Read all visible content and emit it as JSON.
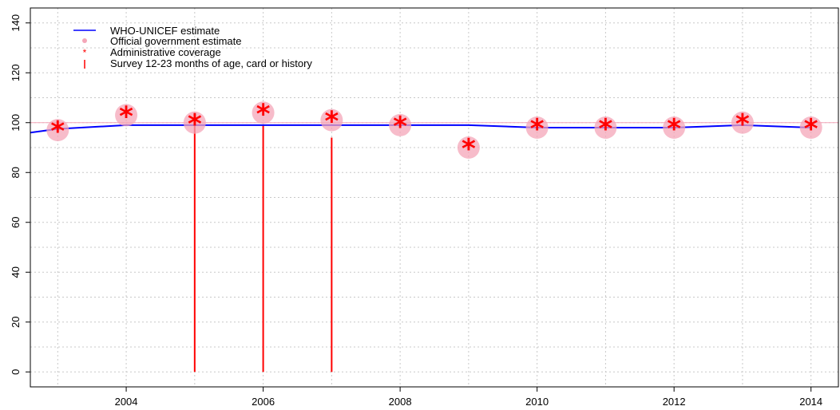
{
  "chart_data": {
    "type": "line",
    "title": "",
    "xlabel": "",
    "ylabel": "",
    "xlim": [
      2002.6,
      2014.4
    ],
    "ylim": [
      -6,
      146
    ],
    "x_ticks": [
      2004,
      2006,
      2008,
      2010,
      2012,
      2014
    ],
    "y_ticks": [
      0,
      20,
      40,
      60,
      80,
      100,
      120,
      140
    ],
    "grid": true,
    "legend_position": "top-left",
    "legend": [
      "WHO-UNICEF estimate",
      "Official government estimate",
      "Administrative coverage",
      "Survey 12-23 months of age, card or history"
    ],
    "colors": {
      "who_unicef": "#0000ff",
      "official": "#f4a6b8",
      "administrative": "#ff0000",
      "survey": "#ff0000",
      "grid": "#c8c8c8",
      "ref_line": "#f4a6b8"
    },
    "reference_line": 100,
    "series": [
      {
        "name": "WHO-UNICEF estimate",
        "kind": "line",
        "x": [
          2002.6,
          2003,
          2004,
          2005,
          2006,
          2007,
          2008,
          2009,
          2010,
          2011,
          2012,
          2013,
          2014
        ],
        "values": [
          96,
          97.5,
          99,
          99,
          99,
          99,
          99,
          99,
          98,
          98,
          98,
          99,
          98
        ]
      },
      {
        "name": "Official government estimate",
        "kind": "point",
        "x": [
          2003,
          2004,
          2005,
          2006,
          2007,
          2008,
          2009,
          2010,
          2011,
          2012,
          2013,
          2014
        ],
        "values": [
          97,
          103,
          100,
          104,
          101,
          99,
          90,
          98,
          98,
          98,
          100,
          98
        ]
      },
      {
        "name": "Administrative coverage",
        "kind": "asterisk",
        "x": [
          2003,
          2004,
          2005,
          2006,
          2007,
          2008,
          2009,
          2010,
          2011,
          2012,
          2013,
          2014
        ],
        "values": [
          97,
          103,
          100,
          104,
          101,
          99,
          90,
          98,
          98,
          98,
          100,
          98
        ]
      },
      {
        "name": "Survey 12-23 months of age, card or history",
        "kind": "vline",
        "x": [
          2005,
          2006,
          2007
        ],
        "values": [
          99,
          99,
          94
        ]
      }
    ]
  }
}
